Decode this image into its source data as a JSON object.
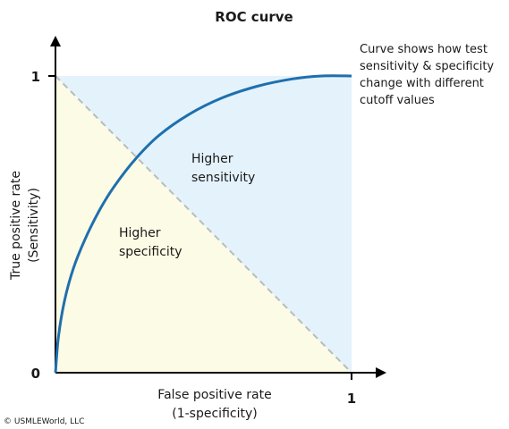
{
  "chart_data": {
    "type": "line",
    "title": "ROC curve",
    "xlabel": [
      "False positive rate",
      "(1-specificity)"
    ],
    "ylabel": [
      "True positive rate",
      "(Sensitivity)"
    ],
    "xlim": [
      0,
      1
    ],
    "ylim": [
      0,
      1
    ],
    "x_ticks": [
      "1"
    ],
    "y_ticks": [
      "0",
      "1"
    ],
    "grid": false,
    "series": [
      {
        "x": [
          0,
          0.01,
          0.03,
          0.06,
          0.1,
          0.15,
          0.2,
          0.27,
          0.35,
          0.45,
          0.56,
          0.68,
          0.8,
          0.9,
          1
        ],
        "y": [
          0,
          0.12,
          0.24,
          0.35,
          0.45,
          0.55,
          0.63,
          0.72,
          0.8,
          0.87,
          0.925,
          0.965,
          0.99,
          1,
          1
        ],
        "color": "#1f6fad"
      }
    ],
    "reference_line": {
      "x": [
        0,
        1
      ],
      "y": [
        1,
        0
      ],
      "style": "dashed",
      "color": "#b8bcbf"
    },
    "regions": [
      {
        "label": [
          "Higher",
          "sensitivity"
        ],
        "color": "#e3f2fb",
        "side": "above-diagonal"
      },
      {
        "label": [
          "Higher",
          "specificity"
        ],
        "color": "#fcfbe5",
        "side": "below-diagonal"
      }
    ],
    "annotation": [
      "Curve shows how test",
      "sensitivity & specificity",
      "change with different",
      "cutoff values"
    ]
  },
  "copyright": "© USMLEWorld, LLC"
}
